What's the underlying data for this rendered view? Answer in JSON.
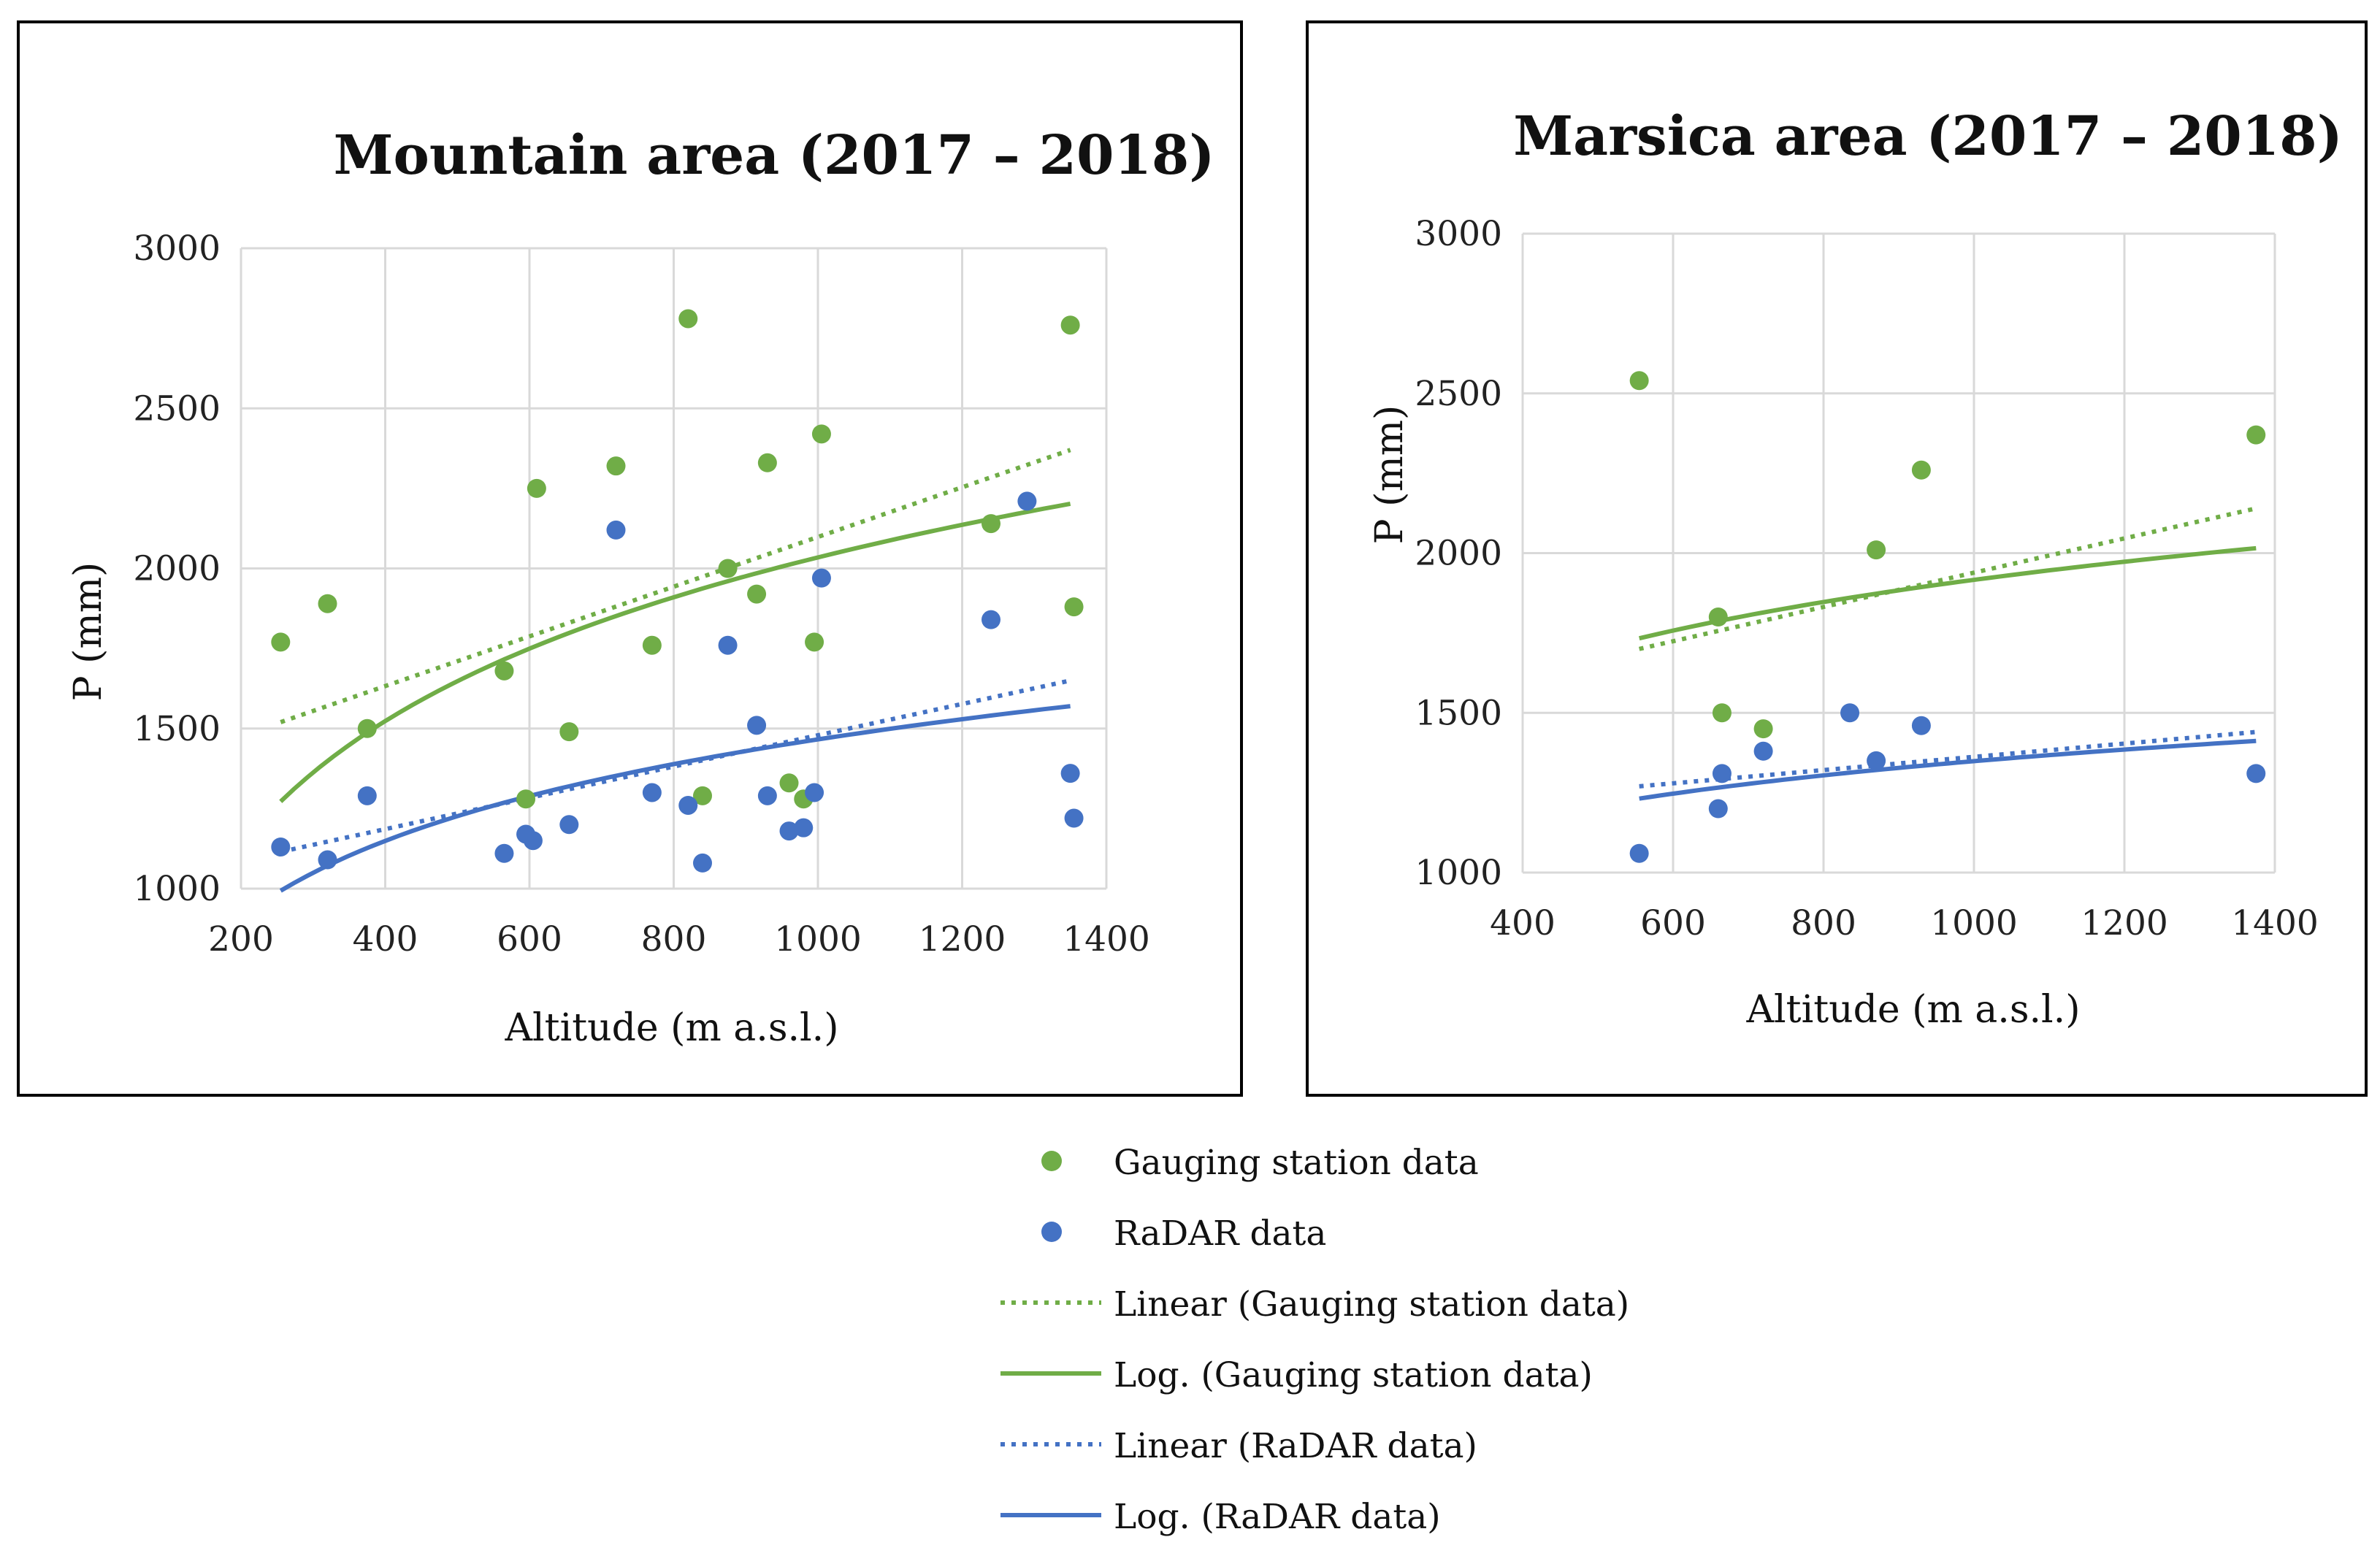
{
  "colors": {
    "gauging": "#70AD47",
    "radar": "#4472C4",
    "grid": "#d9d9d9",
    "frame": "#000000"
  },
  "chart_data": [
    {
      "type": "scatter",
      "title": "Mountain area (2017 – 2018)",
      "xlabel": "Altitude  (m a.s.l.)",
      "ylabel": "P (mm)",
      "xlim": [
        200,
        1400
      ],
      "ylim": [
        1000,
        3000
      ],
      "xticks": [
        200,
        400,
        600,
        800,
        1000,
        1200,
        1400
      ],
      "yticks": [
        1000,
        1500,
        2000,
        2500,
        3000
      ],
      "series": [
        {
          "name": "Gauging station data",
          "kind": "points",
          "color": "gauging",
          "x": [
            255,
            320,
            375,
            565,
            595,
            610,
            655,
            720,
            770,
            820,
            840,
            875,
            915,
            930,
            960,
            980,
            995,
            1005,
            1240,
            1350,
            1355
          ],
          "y": [
            1770,
            1890,
            1500,
            1680,
            1280,
            2250,
            1490,
            2320,
            1760,
            2780,
            1290,
            2000,
            1920,
            2330,
            1330,
            1280,
            1770,
            2420,
            2140,
            2760,
            1880
          ]
        },
        {
          "name": "RaDAR data",
          "kind": "points",
          "color": "radar",
          "x": [
            255,
            320,
            375,
            565,
            595,
            605,
            655,
            720,
            770,
            820,
            840,
            875,
            915,
            930,
            960,
            980,
            995,
            1005,
            1240,
            1290,
            1350,
            1355
          ],
          "y": [
            1130,
            1090,
            1290,
            1110,
            1170,
            1150,
            1200,
            2120,
            1300,
            1260,
            1080,
            1760,
            1510,
            1290,
            1180,
            1190,
            1300,
            1970,
            1840,
            2210,
            1360,
            1220
          ]
        },
        {
          "name": "Linear (Gauging station data)",
          "kind": "linear",
          "color": "gauging",
          "x": [
            255,
            1350
          ],
          "y": [
            1520,
            2370
          ]
        },
        {
          "name": "Log. (Gauging station data)",
          "kind": "log",
          "color": "gauging",
          "a": -1820,
          "b": 558,
          "x_range": [
            255,
            1350
          ]
        },
        {
          "name": "Linear (RaDAR data)",
          "kind": "linear",
          "color": "radar",
          "x": [
            255,
            1350
          ],
          "y": [
            1115,
            1650
          ]
        },
        {
          "name": "Log. (RaDAR data)",
          "kind": "log",
          "color": "radar",
          "a": -924,
          "b": 346,
          "x_range": [
            255,
            1350
          ]
        }
      ]
    },
    {
      "type": "scatter",
      "title": "Marsica area (2017 – 2018)",
      "xlabel": "Altitude  (m a.s.l.)",
      "ylabel": "P (mm)",
      "xlim": [
        400,
        1400
      ],
      "ylim": [
        1000,
        3000
      ],
      "xticks": [
        400,
        600,
        800,
        1000,
        1200,
        1400
      ],
      "yticks": [
        1000,
        1500,
        2000,
        2500,
        3000
      ],
      "series": [
        {
          "name": "Gauging station data",
          "kind": "points",
          "color": "gauging",
          "x": [
            555,
            660,
            665,
            720,
            870,
            930,
            1375
          ],
          "y": [
            2540,
            1800,
            1500,
            1450,
            2010,
            2260,
            2370
          ]
        },
        {
          "name": "RaDAR data",
          "kind": "points",
          "color": "radar",
          "x": [
            555,
            660,
            665,
            720,
            835,
            870,
            930,
            1375
          ],
          "y": [
            1060,
            1200,
            1310,
            1380,
            1500,
            1350,
            1460,
            1310
          ]
        },
        {
          "name": "Linear (Gauging station data)",
          "kind": "linear",
          "color": "gauging",
          "x": [
            555,
            1375
          ],
          "y": [
            1700,
            2140
          ]
        },
        {
          "name": "Log. (Gauging station data)",
          "kind": "log",
          "color": "gauging",
          "a": -232,
          "b": 311,
          "x_range": [
            555,
            1375
          ]
        },
        {
          "name": "Linear (RaDAR data)",
          "kind": "linear",
          "color": "radar",
          "x": [
            555,
            1375
          ],
          "y": [
            1270,
            1440
          ]
        },
        {
          "name": "Log. (RaDAR data)",
          "kind": "log",
          "color": "radar",
          "a": -26,
          "b": 199,
          "x_range": [
            555,
            1375
          ]
        }
      ]
    }
  ],
  "legend": [
    {
      "label": "Gauging station data",
      "marker": "dot",
      "color": "gauging"
    },
    {
      "label": "RaDAR data",
      "marker": "dot",
      "color": "radar"
    },
    {
      "label": "Linear (Gauging station data)",
      "marker": "dotted",
      "color": "gauging"
    },
    {
      "label": "Log. (Gauging station data)",
      "marker": "solid",
      "color": "gauging"
    },
    {
      "label": "Linear (RaDAR data)",
      "marker": "dotted",
      "color": "radar"
    },
    {
      "label": "Log. (RaDAR data)",
      "marker": "solid",
      "color": "radar"
    }
  ]
}
